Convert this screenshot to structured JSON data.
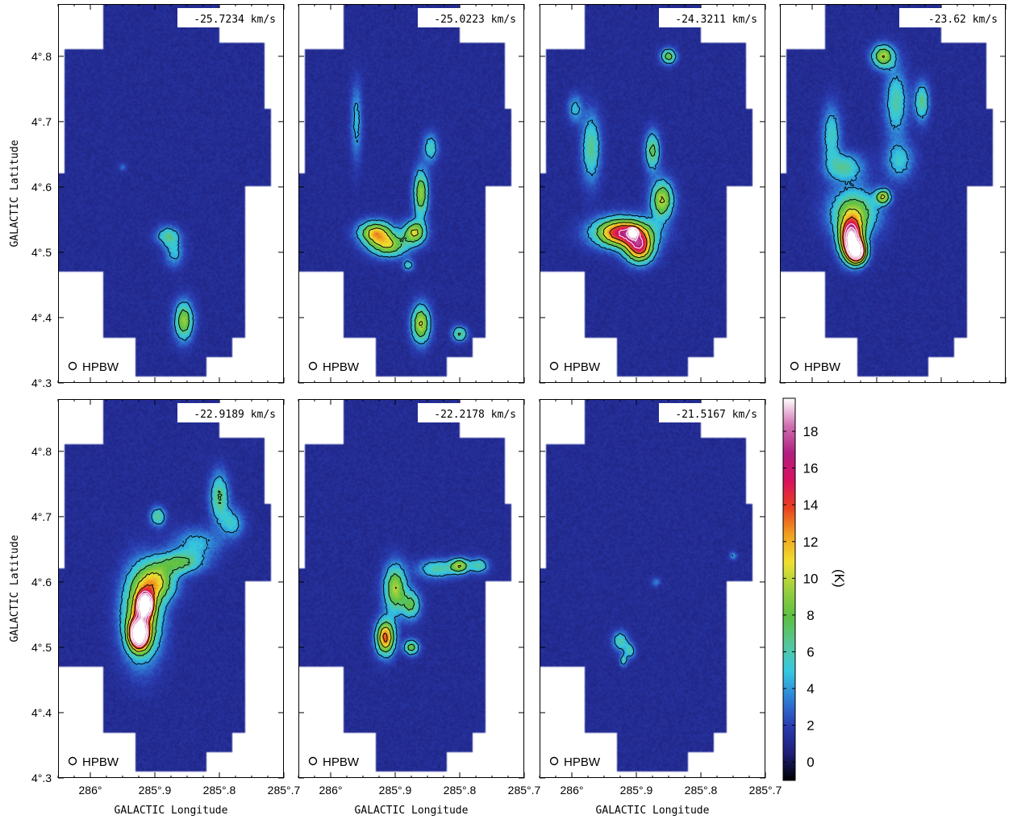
{
  "chart_data": {
    "type": "heatmap",
    "description_units": "brightness temperature map per velocity channel",
    "xlabel": "GALACTIC Longitude",
    "ylabel": "GALACTIC Latitude",
    "xlim": [
      286.05,
      285.7
    ],
    "ylim": [
      4.3,
      4.88
    ],
    "x_ticks": [
      {
        "value": 286.0,
        "label": "286°"
      },
      {
        "value": 285.9,
        "label": "285°.9"
      },
      {
        "value": 285.8,
        "label": "285°.8"
      },
      {
        "value": 285.7,
        "label": "285°.7"
      }
    ],
    "y_ticks": [
      {
        "value": 4.3,
        "label": "4°.3"
      },
      {
        "value": 4.4,
        "label": "4°.4"
      },
      {
        "value": 4.5,
        "label": "4°.5"
      },
      {
        "value": 4.6,
        "label": "4°.6"
      },
      {
        "value": 4.7,
        "label": "4°.7"
      },
      {
        "value": 4.8,
        "label": "4°.8"
      }
    ],
    "beam_label": "HPBW",
    "colorbar": {
      "label": "(K)",
      "range": [
        -1,
        19.8
      ],
      "ticks": [
        0,
        2,
        4,
        6,
        8,
        10,
        12,
        14,
        16,
        18
      ],
      "colors": [
        "#000000",
        "#1e1e78",
        "#2a3cb0",
        "#2f7fd6",
        "#35c8e0",
        "#56c79a",
        "#5cc040",
        "#9bd040",
        "#f0e030",
        "#f0a020",
        "#e84020",
        "#d81060",
        "#b02080",
        "#d070b0",
        "#ffffff"
      ]
    },
    "panels": [
      {
        "velocity": "-25.7234 km/s",
        "clumps": [
          {
            "l": 285.88,
            "b": 4.525,
            "peak": 5.0,
            "sl": 0.012,
            "sb": 0.01
          },
          {
            "l": 285.87,
            "b": 4.5,
            "peak": 3.5,
            "sl": 0.01,
            "sb": 0.015
          },
          {
            "l": 285.855,
            "b": 4.395,
            "peak": 8.0,
            "sl": 0.01,
            "sb": 0.02
          },
          {
            "l": 285.95,
            "b": 4.63,
            "peak": 2.0,
            "sl": 0.004,
            "sb": 0.004
          }
        ]
      },
      {
        "velocity": "-25.0223 km/s",
        "clumps": [
          {
            "l": 285.93,
            "b": 4.53,
            "peak": 10.0,
            "sl": 0.018,
            "sb": 0.012
          },
          {
            "l": 285.91,
            "b": 4.51,
            "peak": 8.0,
            "sl": 0.02,
            "sb": 0.012
          },
          {
            "l": 285.87,
            "b": 4.53,
            "peak": 9.0,
            "sl": 0.012,
            "sb": 0.012
          },
          {
            "l": 285.86,
            "b": 4.59,
            "peak": 8.0,
            "sl": 0.008,
            "sb": 0.025
          },
          {
            "l": 285.845,
            "b": 4.66,
            "peak": 4.5,
            "sl": 0.008,
            "sb": 0.015
          },
          {
            "l": 285.86,
            "b": 4.39,
            "peak": 9.0,
            "sl": 0.01,
            "sb": 0.02
          },
          {
            "l": 285.8,
            "b": 4.375,
            "peak": 6.0,
            "sl": 0.008,
            "sb": 0.008
          },
          {
            "l": 285.88,
            "b": 4.48,
            "peak": 4.0,
            "sl": 0.006,
            "sb": 0.006
          },
          {
            "l": 285.96,
            "b": 4.7,
            "peak": 3.5,
            "sl": 0.006,
            "sb": 0.04
          }
        ]
      },
      {
        "velocity": "-24.3211 km/s",
        "clumps": [
          {
            "l": 285.92,
            "b": 4.53,
            "peak": 15.0,
            "sl": 0.03,
            "sb": 0.015
          },
          {
            "l": 285.895,
            "b": 4.505,
            "peak": 12.0,
            "sl": 0.015,
            "sb": 0.015
          },
          {
            "l": 285.86,
            "b": 4.58,
            "peak": 9.0,
            "sl": 0.012,
            "sb": 0.02
          },
          {
            "l": 285.875,
            "b": 4.655,
            "peak": 6.5,
            "sl": 0.008,
            "sb": 0.02
          },
          {
            "l": 285.85,
            "b": 4.8,
            "peak": 7.0,
            "sl": 0.008,
            "sb": 0.008
          },
          {
            "l": 285.97,
            "b": 4.66,
            "peak": 5.5,
            "sl": 0.01,
            "sb": 0.035
          },
          {
            "l": 285.995,
            "b": 4.72,
            "peak": 3.5,
            "sl": 0.008,
            "sb": 0.015
          },
          {
            "l": 285.905,
            "b": 4.53,
            "peak": 18.0,
            "sl": 0.004,
            "sb": 0.004
          }
        ]
      },
      {
        "velocity": "-23.62 km/s",
        "clumps": [
          {
            "l": 285.94,
            "b": 4.52,
            "peak": 17.0,
            "sl": 0.012,
            "sb": 0.02
          },
          {
            "l": 285.93,
            "b": 4.5,
            "peak": 16.0,
            "sl": 0.01,
            "sb": 0.012
          },
          {
            "l": 285.935,
            "b": 4.56,
            "peak": 8.0,
            "sl": 0.025,
            "sb": 0.025
          },
          {
            "l": 285.89,
            "b": 4.585,
            "peak": 8.5,
            "sl": 0.008,
            "sb": 0.008
          },
          {
            "l": 285.95,
            "b": 4.63,
            "peak": 5.0,
            "sl": 0.02,
            "sb": 0.015
          },
          {
            "l": 285.97,
            "b": 4.68,
            "peak": 4.5,
            "sl": 0.01,
            "sb": 0.03
          },
          {
            "l": 285.89,
            "b": 4.8,
            "peak": 8.5,
            "sl": 0.012,
            "sb": 0.012
          },
          {
            "l": 285.87,
            "b": 4.73,
            "peak": 5.0,
            "sl": 0.012,
            "sb": 0.035
          },
          {
            "l": 285.83,
            "b": 4.73,
            "peak": 5.5,
            "sl": 0.008,
            "sb": 0.02
          },
          {
            "l": 285.865,
            "b": 4.64,
            "peak": 4.0,
            "sl": 0.015,
            "sb": 0.02
          }
        ]
      },
      {
        "velocity": "-22.9189 km/s",
        "clumps": [
          {
            "l": 285.925,
            "b": 4.52,
            "peak": 18.5,
            "sl": 0.01,
            "sb": 0.015
          },
          {
            "l": 285.915,
            "b": 4.565,
            "peak": 16.0,
            "sl": 0.008,
            "sb": 0.012
          },
          {
            "l": 285.92,
            "b": 4.55,
            "peak": 11.0,
            "sl": 0.02,
            "sb": 0.045
          },
          {
            "l": 285.895,
            "b": 4.6,
            "peak": 7.5,
            "sl": 0.02,
            "sb": 0.02
          },
          {
            "l": 285.86,
            "b": 4.63,
            "peak": 6.0,
            "sl": 0.025,
            "sb": 0.012
          },
          {
            "l": 285.895,
            "b": 4.7,
            "peak": 5.5,
            "sl": 0.008,
            "sb": 0.01
          },
          {
            "l": 285.8,
            "b": 4.73,
            "peak": 6.0,
            "sl": 0.01,
            "sb": 0.025
          },
          {
            "l": 285.78,
            "b": 4.69,
            "peak": 4.0,
            "sl": 0.012,
            "sb": 0.015
          },
          {
            "l": 285.835,
            "b": 4.66,
            "peak": 3.5,
            "sl": 0.025,
            "sb": 0.015
          }
        ]
      },
      {
        "velocity": "-22.2178 km/s",
        "clumps": [
          {
            "l": 285.915,
            "b": 4.515,
            "peak": 12.5,
            "sl": 0.01,
            "sb": 0.018
          },
          {
            "l": 285.9,
            "b": 4.59,
            "peak": 8.5,
            "sl": 0.012,
            "sb": 0.025
          },
          {
            "l": 285.875,
            "b": 4.565,
            "peak": 6.0,
            "sl": 0.01,
            "sb": 0.015
          },
          {
            "l": 285.875,
            "b": 4.5,
            "peak": 7.0,
            "sl": 0.008,
            "sb": 0.008
          },
          {
            "l": 285.8,
            "b": 4.625,
            "peak": 8.0,
            "sl": 0.01,
            "sb": 0.008
          },
          {
            "l": 285.835,
            "b": 4.62,
            "peak": 5.0,
            "sl": 0.02,
            "sb": 0.01
          },
          {
            "l": 285.77,
            "b": 4.625,
            "peak": 5.0,
            "sl": 0.01,
            "sb": 0.008
          }
        ]
      },
      {
        "velocity": "-21.5167 km/s",
        "clumps": [
          {
            "l": 285.925,
            "b": 4.51,
            "peak": 5.0,
            "sl": 0.008,
            "sb": 0.01
          },
          {
            "l": 285.91,
            "b": 4.495,
            "peak": 4.5,
            "sl": 0.006,
            "sb": 0.008
          },
          {
            "l": 285.92,
            "b": 4.48,
            "peak": 4.5,
            "sl": 0.004,
            "sb": 0.006
          },
          {
            "l": 285.75,
            "b": 4.64,
            "peak": 3.0,
            "sl": 0.004,
            "sb": 0.004
          },
          {
            "l": 285.87,
            "b": 4.6,
            "peak": 2.2,
            "sl": 0.005,
            "sb": 0.005
          }
        ]
      }
    ]
  }
}
